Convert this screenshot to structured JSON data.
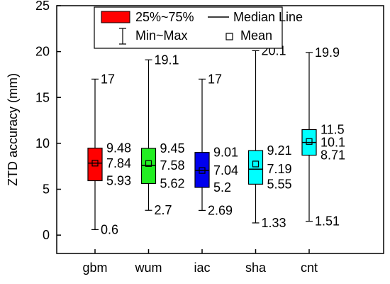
{
  "chart_data": {
    "type": "box",
    "ylabel": "ZTD accuracy (mm)",
    "ylim": [
      -2,
      25
    ],
    "yticks": [
      0,
      5,
      10,
      15,
      20,
      25
    ],
    "categories": [
      "gbm",
      "wum",
      "iac",
      "sha",
      "cnt"
    ],
    "colors": [
      "#ff0000",
      "#22ee22",
      "#0000ee",
      "#00ffff",
      "#00ffff"
    ],
    "boxes": [
      {
        "name": "gbm",
        "min": 0.6,
        "q1": 5.93,
        "median": 7.84,
        "mean": 7.84,
        "q3": 9.48,
        "max": 17,
        "labels": {
          "max": "17",
          "q3": "9.48",
          "median": "7.84",
          "q1": "5.93",
          "min": "0.6"
        }
      },
      {
        "name": "wum",
        "min": 2.7,
        "q1": 5.62,
        "median": 7.58,
        "mean": 7.8,
        "q3": 9.45,
        "max": 19.1,
        "labels": {
          "max": "19.1",
          "q3": "9.45",
          "median": "7.58",
          "q1": "5.62",
          "min": "2.7"
        }
      },
      {
        "name": "iac",
        "min": 2.69,
        "q1": 5.2,
        "median": 7.04,
        "mean": 7.04,
        "q3": 9.01,
        "max": 17,
        "labels": {
          "max": "17",
          "q3": "9.01",
          "median": "7.04",
          "q1": "5.2",
          "min": "2.69"
        }
      },
      {
        "name": "sha",
        "min": 1.33,
        "q1": 5.55,
        "median": 7.19,
        "mean": 7.75,
        "q3": 9.21,
        "max": 20.1,
        "labels": {
          "max": "20.1",
          "q3": "9.21",
          "median": "7.19",
          "q1": "5.55",
          "min": "1.33"
        }
      },
      {
        "name": "cnt",
        "min": 1.51,
        "q1": 8.71,
        "median": 10.1,
        "mean": 10.2,
        "q3": 11.5,
        "max": 19.9,
        "labels": {
          "max": "19.9",
          "q3": "11.5",
          "median": "10.1",
          "q1": "8.71",
          "min": "1.51"
        }
      }
    ],
    "legend": {
      "placement": "top",
      "items": [
        {
          "kind": "box",
          "label": "25%~75%"
        },
        {
          "kind": "median-line",
          "label": "Median Line"
        },
        {
          "kind": "whisker",
          "label": "Min~Max"
        },
        {
          "kind": "mean-marker",
          "label": "Mean"
        }
      ]
    }
  }
}
